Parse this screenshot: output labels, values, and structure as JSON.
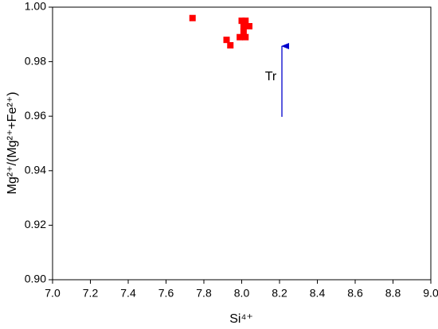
{
  "chart_data": {
    "type": "scatter",
    "x_label": "Si⁴⁺",
    "y_label": "Mg²⁺/(Mg²⁺+Fe²⁺)",
    "series": [
      {
        "color": "#ff0000",
        "x": [
          7.74,
          7.92,
          7.94,
          7.99,
          8.0,
          8.02,
          8.01,
          8.04,
          8.01,
          8.02
        ],
        "values": [
          0.996,
          0.988,
          0.986,
          0.989,
          0.995,
          0.995,
          0.993,
          0.993,
          0.991,
          0.989
        ]
      }
    ],
    "xlim": [
      7.0,
      9.0
    ],
    "xticks": [
      {
        "value": 7.0,
        "label": "7.0"
      },
      7.2,
      7.4,
      7.6,
      7.8,
      {
        "value": 8.0,
        "label": "8.0"
      },
      8.2,
      8.4,
      8.6,
      8.8,
      {
        "value": 9.0,
        "label": "9.0"
      }
    ],
    "ylim": [
      0.9,
      1.0
    ],
    "yticks": [
      {
        "value": 0.9,
        "label": "0.90"
      },
      0.92,
      0.94,
      0.96,
      0.98,
      {
        "value": 1.0,
        "label": "1.00"
      }
    ],
    "grid": false,
    "annotation": "Tr"
  }
}
